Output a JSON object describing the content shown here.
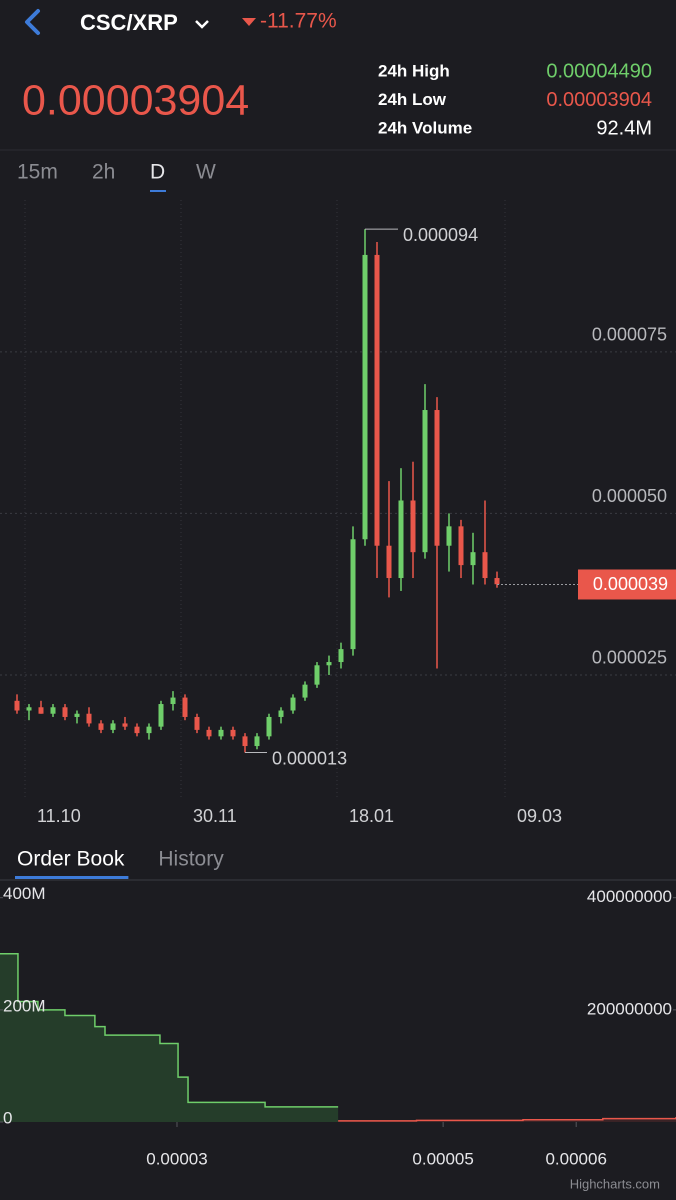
{
  "header": {
    "pair": "CSC/XRP",
    "change": "-11.77%",
    "price": "0.00003904",
    "stats": [
      {
        "label": "24h High",
        "value": "0.00004490",
        "color": "#6fce6a"
      },
      {
        "label": "24h Low",
        "value": "0.00003904",
        "color": "#e9574b"
      },
      {
        "label": "24h Volume",
        "value": "92.4M",
        "color": "#ffffff"
      }
    ]
  },
  "intervals": [
    {
      "label": "15m"
    },
    {
      "label": "2h"
    },
    {
      "label": "D",
      "active": true
    },
    {
      "label": "W"
    }
  ],
  "tabs": [
    {
      "label": "Order Book",
      "active": true
    },
    {
      "label": "History"
    }
  ],
  "chart_data": [
    {
      "type": "candlestick",
      "categories": [
        null,
        "11.10",
        null,
        null,
        null,
        null,
        null,
        null,
        null,
        null,
        null,
        null,
        null,
        null,
        "30.11",
        null,
        null,
        null,
        null,
        null,
        null,
        null,
        null,
        null,
        null,
        null,
        null,
        "18.01",
        null,
        null,
        null,
        null,
        null,
        null,
        null,
        null,
        null,
        null,
        null,
        null,
        null,
        "09.03"
      ],
      "open": [
        2.1e-05,
        1.95e-05,
        2e-05,
        1.9e-05,
        2e-05,
        1.85e-05,
        1.9e-05,
        1.75e-05,
        1.65e-05,
        1.75e-05,
        1.7e-05,
        1.6e-05,
        1.7e-05,
        2.05e-05,
        2.15e-05,
        1.85e-05,
        1.65e-05,
        1.55e-05,
        1.65e-05,
        1.55e-05,
        1.4e-05,
        1.55e-05,
        1.85e-05,
        1.95e-05,
        2.15e-05,
        2.35e-05,
        2.65e-05,
        2.7e-05,
        2.9e-05,
        4.6e-05,
        9e-05,
        4.5e-05,
        4e-05,
        5.2e-05,
        4.4e-05,
        6.6e-05,
        4.5e-05,
        4.8e-05,
        4.2e-05,
        4.4e-05,
        4e-05,
        null
      ],
      "high": [
        2.2e-05,
        2.05e-05,
        2.1e-05,
        2.05e-05,
        2.05e-05,
        1.95e-05,
        2e-05,
        1.8e-05,
        1.8e-05,
        1.85e-05,
        1.75e-05,
        1.75e-05,
        2.1e-05,
        2.25e-05,
        2.2e-05,
        1.9e-05,
        1.7e-05,
        1.7e-05,
        1.7e-05,
        1.6e-05,
        1.6e-05,
        1.9e-05,
        2e-05,
        2.2e-05,
        2.4e-05,
        2.7e-05,
        2.8e-05,
        3e-05,
        4.8e-05,
        9.4e-05,
        9.2e-05,
        5.5e-05,
        5.7e-05,
        5.8e-05,
        7e-05,
        6.8e-05,
        5e-05,
        4.9e-05,
        4.7e-05,
        5.2e-05,
        4.1e-05,
        null
      ],
      "low": [
        1.9e-05,
        1.8e-05,
        1.9e-05,
        1.85e-05,
        1.8e-05,
        1.75e-05,
        1.7e-05,
        1.6e-05,
        1.6e-05,
        1.65e-05,
        1.55e-05,
        1.5e-05,
        1.65e-05,
        1.95e-05,
        1.8e-05,
        1.6e-05,
        1.5e-05,
        1.5e-05,
        1.5e-05,
        1.3e-05,
        1.35e-05,
        1.5e-05,
        1.75e-05,
        1.9e-05,
        2.1e-05,
        2.3e-05,
        2.5e-05,
        2.6e-05,
        2.8e-05,
        4.5e-05,
        4e-05,
        3.7e-05,
        3.8e-05,
        4e-05,
        4.3e-05,
        2.6e-05,
        4.1e-05,
        4e-05,
        3.9e-05,
        3.9e-05,
        3.85e-05,
        null
      ],
      "close": [
        1.95e-05,
        2e-05,
        1.9e-05,
        2e-05,
        1.85e-05,
        1.9e-05,
        1.75e-05,
        1.65e-05,
        1.75e-05,
        1.7e-05,
        1.6e-05,
        1.7e-05,
        2.05e-05,
        2.15e-05,
        1.85e-05,
        1.65e-05,
        1.55e-05,
        1.65e-05,
        1.55e-05,
        1.4e-05,
        1.55e-05,
        1.85e-05,
        1.95e-05,
        2.15e-05,
        2.35e-05,
        2.65e-05,
        2.7e-05,
        2.9e-05,
        4.6e-05,
        9e-05,
        4.5e-05,
        4e-05,
        5.2e-05,
        4.4e-05,
        6.6e-05,
        4.5e-05,
        4.8e-05,
        4.2e-05,
        4.4e-05,
        4e-05,
        3.904e-05,
        null
      ],
      "up_color": "#6fce6a",
      "down_color": "#e9574b",
      "ylim": [
        5.65e-06,
        9.85e-05
      ],
      "yticks": [
        {
          "value": 2.5e-05,
          "label": "0.000025"
        },
        {
          "value": 5e-05,
          "label": "0.000050"
        },
        {
          "value": 7.5e-05,
          "label": "0.000075"
        }
      ],
      "grid": true,
      "annotations": [
        {
          "value": 9.4e-05,
          "label": "0.000094",
          "at": "high"
        },
        {
          "value": 1.3e-05,
          "label": "0.000013",
          "at": "low"
        }
      ],
      "last_price": {
        "value": 3.9e-05,
        "label": "0.000039",
        "color": "#e9574b"
      }
    },
    {
      "type": "depth",
      "series": [
        {
          "color": "#6fce6a",
          "fill": "#253d2a",
          "x": [
            1.67e-05,
            1.805e-05,
            1.955e-05,
            2.158e-05,
            2.383e-05,
            2.459e-05,
            2.872e-05,
            3.008e-05,
            3.083e-05,
            3.662e-05,
            4.211e-05
          ],
          "values": [
            300000000,
            215000000,
            200000000,
            190000000,
            170000000,
            155000000,
            140000000,
            80000000,
            35000000,
            27000000,
            27000000
          ]
        },
        {
          "color": "#e9574b",
          "fill": "#3a2326",
          "x": [
            4.211e-05,
            4.8e-05,
            5.6e-05,
            6.2e-05,
            6.75e-05
          ],
          "values": [
            2000000,
            3000000,
            4000000,
            6000000,
            9000000
          ]
        }
      ],
      "xlim": [
        1.67e-05,
        6.75e-05
      ],
      "xticks": [
        3e-05,
        5e-05,
        6e-05
      ],
      "ylim": [
        0,
        428000000
      ],
      "yticks": [
        0,
        {
          "value": 200000000,
          "label": "200M"
        },
        {
          "value": 400000000,
          "label": "400M"
        }
      ],
      "y2lim": [
        0,
        428000000
      ],
      "y2ticks": [
        200000000,
        400000000
      ]
    }
  ],
  "credit": "Highcharts.com"
}
